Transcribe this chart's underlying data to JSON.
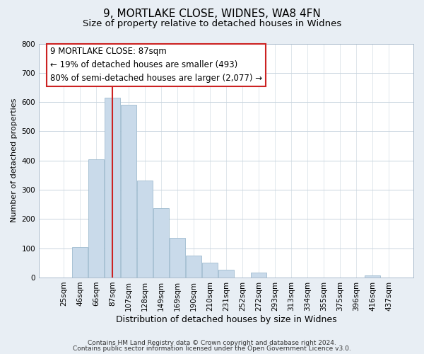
{
  "title": "9, MORTLAKE CLOSE, WIDNES, WA8 4FN",
  "subtitle": "Size of property relative to detached houses in Widnes",
  "xlabel": "Distribution of detached houses by size in Widnes",
  "ylabel": "Number of detached properties",
  "bar_labels": [
    "25sqm",
    "46sqm",
    "66sqm",
    "87sqm",
    "107sqm",
    "128sqm",
    "149sqm",
    "169sqm",
    "190sqm",
    "210sqm",
    "231sqm",
    "252sqm",
    "272sqm",
    "293sqm",
    "313sqm",
    "334sqm",
    "355sqm",
    "375sqm",
    "396sqm",
    "416sqm",
    "437sqm"
  ],
  "bar_heights": [
    0,
    105,
    403,
    615,
    590,
    332,
    237,
    135,
    76,
    50,
    27,
    0,
    16,
    0,
    0,
    0,
    0,
    0,
    0,
    8,
    0
  ],
  "bar_color": "#c9daea",
  "bar_edge_color": "#a0bcd0",
  "vline_x": 3,
  "vline_color": "#cc2222",
  "ylim": [
    0,
    800
  ],
  "yticks": [
    0,
    100,
    200,
    300,
    400,
    500,
    600,
    700,
    800
  ],
  "annotation_line1": "9 MORTLAKE CLOSE: 87sqm",
  "annotation_line2": "← 19% of detached houses are smaller (493)",
  "annotation_line3": "80% of semi-detached houses are larger (2,077) →",
  "footer_line1": "Contains HM Land Registry data © Crown copyright and database right 2024.",
  "footer_line2": "Contains public sector information licensed under the Open Government Licence v3.0.",
  "background_color": "#e8eef4",
  "plot_background_color": "#ffffff",
  "grid_color": "#c8d4de",
  "title_fontsize": 11,
  "subtitle_fontsize": 9.5,
  "xlabel_fontsize": 9,
  "ylabel_fontsize": 8,
  "tick_fontsize": 7.5,
  "annotation_fontsize": 8.5,
  "footer_fontsize": 6.5
}
